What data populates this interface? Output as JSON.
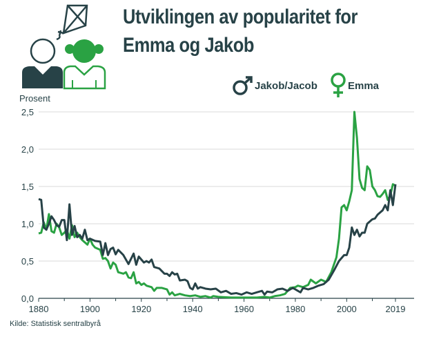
{
  "title_line1": "Utviklingen av popularitet for",
  "title_line2": "Emma og Jakob",
  "source": "Kilde: Statistisk sentralbyrå",
  "colors": {
    "jakob": "#274247",
    "emma": "#2aa243",
    "grid": "#d9d9d9"
  },
  "icons": [
    "kite-icon",
    "boy-icon",
    "girl-icon",
    "male-symbol-icon",
    "female-symbol-icon"
  ],
  "chart_data": {
    "type": "line",
    "ylabel": "Prosent",
    "xlim": [
      1880,
      2019
    ],
    "ylim": [
      0,
      2.5
    ],
    "grid": "horizontal",
    "legend": "top-right",
    "x_ticks": [
      "1880",
      "1900",
      "1920",
      "1940",
      "1960",
      "1980",
      "2000",
      "2019"
    ],
    "y_ticks": [
      "0,0",
      "0,5",
      "1,0",
      "1,5",
      "2,0",
      "2,5"
    ],
    "series": [
      {
        "name": "Jakob/Jacob",
        "points": [
          [
            1880,
            1.33
          ],
          [
            1881,
            1.32
          ],
          [
            1882,
            0.95
          ],
          [
            1883,
            0.92
          ],
          [
            1884,
            1.0
          ],
          [
            1885,
            1.1
          ],
          [
            1886,
            1.05
          ],
          [
            1887,
            0.98
          ],
          [
            1888,
            0.96
          ],
          [
            1889,
            1.05
          ],
          [
            1890,
            1.05
          ],
          [
            1891,
            0.78
          ],
          [
            1892,
            1.26
          ],
          [
            1893,
            0.85
          ],
          [
            1894,
            0.97
          ],
          [
            1895,
            0.82
          ],
          [
            1896,
            0.85
          ],
          [
            1897,
            0.8
          ],
          [
            1898,
            0.92
          ],
          [
            1899,
            0.78
          ],
          [
            1900,
            0.8
          ],
          [
            1902,
            0.77
          ],
          [
            1904,
            0.76
          ],
          [
            1905,
            0.58
          ],
          [
            1906,
            0.74
          ],
          [
            1907,
            0.58
          ],
          [
            1908,
            0.66
          ],
          [
            1909,
            0.68
          ],
          [
            1910,
            0.59
          ],
          [
            1911,
            0.65
          ],
          [
            1913,
            0.58
          ],
          [
            1915,
            0.46
          ],
          [
            1917,
            0.6
          ],
          [
            1918,
            0.45
          ],
          [
            1919,
            0.56
          ],
          [
            1921,
            0.48
          ],
          [
            1922,
            0.5
          ],
          [
            1923,
            0.48
          ],
          [
            1924,
            0.52
          ],
          [
            1925,
            0.42
          ],
          [
            1927,
            0.4
          ],
          [
            1929,
            0.33
          ],
          [
            1930,
            0.33
          ],
          [
            1931,
            0.3
          ],
          [
            1932,
            0.35
          ],
          [
            1933,
            0.32
          ],
          [
            1934,
            0.33
          ],
          [
            1935,
            0.24
          ],
          [
            1937,
            0.25
          ],
          [
            1938,
            0.23
          ],
          [
            1939,
            0.14
          ],
          [
            1940,
            0.12
          ],
          [
            1941,
            0.2
          ],
          [
            1942,
            0.13
          ],
          [
            1943,
            0.15
          ],
          [
            1945,
            0.13
          ],
          [
            1947,
            0.12
          ],
          [
            1949,
            0.13
          ],
          [
            1951,
            0.08
          ],
          [
            1953,
            0.1
          ],
          [
            1955,
            0.06
          ],
          [
            1957,
            0.07
          ],
          [
            1959,
            0.05
          ],
          [
            1961,
            0.08
          ],
          [
            1963,
            0.06
          ],
          [
            1965,
            0.08
          ],
          [
            1967,
            0.1
          ],
          [
            1968,
            0.05
          ],
          [
            1969,
            0.09
          ],
          [
            1971,
            0.08
          ],
          [
            1973,
            0.12
          ],
          [
            1975,
            0.13
          ],
          [
            1977,
            0.1
          ],
          [
            1979,
            0.14
          ],
          [
            1981,
            0.1
          ],
          [
            1982,
            0.08
          ],
          [
            1983,
            0.14
          ],
          [
            1985,
            0.12
          ],
          [
            1987,
            0.14
          ],
          [
            1989,
            0.17
          ],
          [
            1991,
            0.19
          ],
          [
            1993,
            0.25
          ],
          [
            1995,
            0.37
          ],
          [
            1997,
            0.5
          ],
          [
            1999,
            0.58
          ],
          [
            2000,
            0.58
          ],
          [
            2001,
            0.68
          ],
          [
            2002,
            0.95
          ],
          [
            2003,
            0.85
          ],
          [
            2004,
            0.92
          ],
          [
            2005,
            0.83
          ],
          [
            2006,
            0.88
          ],
          [
            2007,
            0.88
          ],
          [
            2008,
            1.0
          ],
          [
            2009,
            1.03
          ],
          [
            2010,
            1.06
          ],
          [
            2011,
            1.07
          ],
          [
            2012,
            1.12
          ],
          [
            2013,
            1.15
          ],
          [
            2014,
            1.18
          ],
          [
            2015,
            1.25
          ],
          [
            2016,
            1.18
          ],
          [
            2017,
            1.45
          ],
          [
            2018,
            1.25
          ],
          [
            2019,
            1.53
          ]
        ]
      },
      {
        "name": "Emma",
        "points": [
          [
            1880,
            0.87
          ],
          [
            1881,
            0.88
          ],
          [
            1882,
            1.02
          ],
          [
            1883,
            0.92
          ],
          [
            1884,
            1.13
          ],
          [
            1885,
            0.9
          ],
          [
            1886,
            0.88
          ],
          [
            1887,
            1.0
          ],
          [
            1888,
            0.95
          ],
          [
            1889,
            0.85
          ],
          [
            1890,
            0.88
          ],
          [
            1891,
            0.92
          ],
          [
            1892,
            0.8
          ],
          [
            1893,
            0.98
          ],
          [
            1894,
            0.82
          ],
          [
            1895,
            0.88
          ],
          [
            1896,
            0.82
          ],
          [
            1897,
            0.78
          ],
          [
            1898,
            0.75
          ],
          [
            1899,
            0.72
          ],
          [
            1900,
            0.8
          ],
          [
            1901,
            0.72
          ],
          [
            1902,
            0.68
          ],
          [
            1904,
            0.65
          ],
          [
            1905,
            0.53
          ],
          [
            1906,
            0.54
          ],
          [
            1907,
            0.5
          ],
          [
            1908,
            0.4
          ],
          [
            1909,
            0.48
          ],
          [
            1910,
            0.45
          ],
          [
            1911,
            0.35
          ],
          [
            1913,
            0.33
          ],
          [
            1914,
            0.35
          ],
          [
            1915,
            0.28
          ],
          [
            1916,
            0.27
          ],
          [
            1917,
            0.35
          ],
          [
            1918,
            0.2
          ],
          [
            1919,
            0.22
          ],
          [
            1920,
            0.18
          ],
          [
            1921,
            0.2
          ],
          [
            1922,
            0.17
          ],
          [
            1924,
            0.15
          ],
          [
            1925,
            0.1
          ],
          [
            1926,
            0.14
          ],
          [
            1928,
            0.14
          ],
          [
            1930,
            0.12
          ],
          [
            1931,
            0.05
          ],
          [
            1932,
            0.08
          ],
          [
            1933,
            0.04
          ],
          [
            1935,
            0.06
          ],
          [
            1937,
            0.04
          ],
          [
            1939,
            0.03
          ],
          [
            1941,
            0.04
          ],
          [
            1943,
            0.02
          ],
          [
            1945,
            0.03
          ],
          [
            1947,
            0.01
          ],
          [
            1948,
            0.03
          ],
          [
            1950,
            0.02
          ],
          [
            1955,
            0.01
          ],
          [
            1960,
            0.01
          ],
          [
            1965,
            0.01
          ],
          [
            1968,
            0.02
          ],
          [
            1970,
            0.01
          ],
          [
            1972,
            0.03
          ],
          [
            1974,
            0.04
          ],
          [
            1976,
            0.06
          ],
          [
            1978,
            0.14
          ],
          [
            1980,
            0.15
          ],
          [
            1981,
            0.17
          ],
          [
            1983,
            0.15
          ],
          [
            1985,
            0.18
          ],
          [
            1986,
            0.25
          ],
          [
            1988,
            0.2
          ],
          [
            1990,
            0.25
          ],
          [
            1992,
            0.22
          ],
          [
            1994,
            0.35
          ],
          [
            1996,
            0.55
          ],
          [
            1997,
            0.8
          ],
          [
            1998,
            1.22
          ],
          [
            1999,
            1.25
          ],
          [
            2000,
            1.18
          ],
          [
            2001,
            1.3
          ],
          [
            2002,
            1.45
          ],
          [
            2003,
            2.5
          ],
          [
            2004,
            2.15
          ],
          [
            2005,
            1.6
          ],
          [
            2006,
            1.48
          ],
          [
            2007,
            1.45
          ],
          [
            2008,
            1.77
          ],
          [
            2009,
            1.72
          ],
          [
            2010,
            1.5
          ],
          [
            2011,
            1.45
          ],
          [
            2012,
            1.37
          ],
          [
            2013,
            1.36
          ],
          [
            2014,
            1.4
          ],
          [
            2015,
            1.45
          ],
          [
            2016,
            1.32
          ],
          [
            2017,
            1.38
          ],
          [
            2018,
            1.53
          ],
          [
            2019,
            1.51
          ]
        ]
      }
    ]
  }
}
